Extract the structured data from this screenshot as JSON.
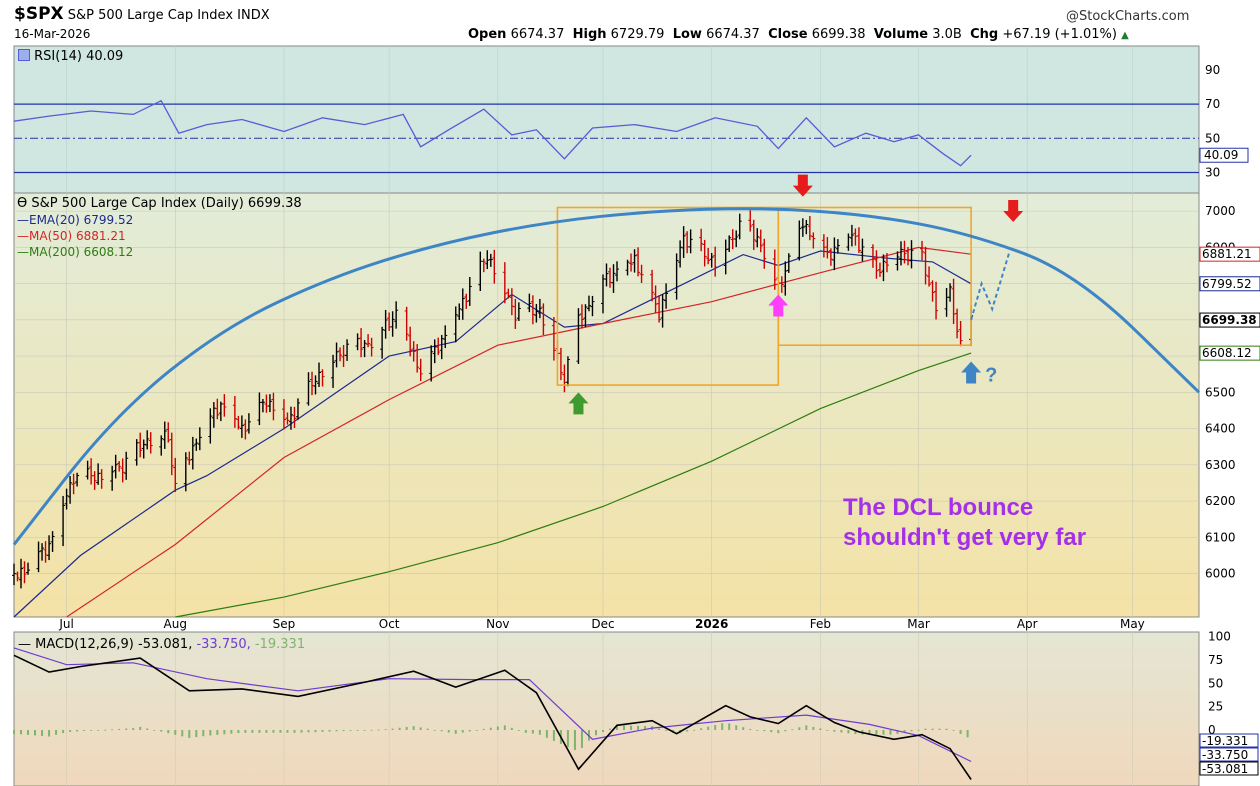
{
  "header": {
    "symbol": "$SPX",
    "name": "S&P 500 Large Cap Index",
    "exchange": "INDX",
    "date": "16-Mar-2026",
    "watermark": "@StockCharts.com",
    "ohlc": {
      "open_label": "Open",
      "open": "6674.37",
      "high_label": "High",
      "high": "6729.79",
      "low_label": "Low",
      "low": "6674.37",
      "close_label": "Close",
      "close": "6699.38",
      "volume_label": "Volume",
      "volume": "3.0B",
      "chg_label": "Chg",
      "chg": "+67.19 (+1.01%)",
      "chg_icon": "up-triangle-icon"
    }
  },
  "rsi_panel": {
    "legend": "RSI(14) 40.09",
    "value": 40.09,
    "value_label": "40.09",
    "ticks": [
      "90",
      "70",
      "50",
      "30"
    ],
    "tick_values": [
      90,
      70,
      50,
      30
    ],
    "levels": [
      70,
      50,
      30
    ],
    "ylim": [
      18,
      104
    ],
    "series": [
      {
        "d": "2025-06-16",
        "v": 60
      },
      {
        "d": "2025-06-26",
        "v": 63
      },
      {
        "d": "2025-07-08",
        "v": 66
      },
      {
        "d": "2025-07-20",
        "v": 64
      },
      {
        "d": "2025-07-28",
        "v": 72
      },
      {
        "d": "2025-08-02",
        "v": 53
      },
      {
        "d": "2025-08-10",
        "v": 58
      },
      {
        "d": "2025-08-20",
        "v": 61
      },
      {
        "d": "2025-09-01",
        "v": 54
      },
      {
        "d": "2025-09-12",
        "v": 62
      },
      {
        "d": "2025-09-24",
        "v": 58
      },
      {
        "d": "2025-10-05",
        "v": 64
      },
      {
        "d": "2025-10-10",
        "v": 45
      },
      {
        "d": "2025-10-18",
        "v": 55
      },
      {
        "d": "2025-10-28",
        "v": 67
      },
      {
        "d": "2025-11-05",
        "v": 52
      },
      {
        "d": "2025-11-12",
        "v": 55
      },
      {
        "d": "2025-11-20",
        "v": 38
      },
      {
        "d": "2025-11-28",
        "v": 56
      },
      {
        "d": "2025-12-10",
        "v": 58
      },
      {
        "d": "2025-12-22",
        "v": 54
      },
      {
        "d": "2026-01-02",
        "v": 62
      },
      {
        "d": "2026-01-14",
        "v": 57
      },
      {
        "d": "2026-01-20",
        "v": 44
      },
      {
        "d": "2026-01-28",
        "v": 62
      },
      {
        "d": "2026-02-05",
        "v": 45
      },
      {
        "d": "2026-02-14",
        "v": 53
      },
      {
        "d": "2026-02-22",
        "v": 48
      },
      {
        "d": "2026-03-01",
        "v": 52
      },
      {
        "d": "2026-03-08",
        "v": 41
      },
      {
        "d": "2026-03-13",
        "v": 34
      },
      {
        "d": "2026-03-16",
        "v": 40.09
      }
    ]
  },
  "chart_data": {
    "type": "line",
    "title": "S&P 500 Large Cap Index (Daily) 6699.38",
    "xlabel": "",
    "ylabel": "",
    "x_range": [
      "2025-06-16",
      "2026-05-20"
    ],
    "ylim": [
      5880,
      7050
    ],
    "x_ticks": [
      {
        "label": "Jul",
        "d": "2025-07-01"
      },
      {
        "label": "Aug",
        "d": "2025-08-01"
      },
      {
        "label": "Sep",
        "d": "2025-09-01"
      },
      {
        "label": "Oct",
        "d": "2025-10-01"
      },
      {
        "label": "Nov",
        "d": "2025-11-01"
      },
      {
        "label": "Dec",
        "d": "2025-12-01"
      },
      {
        "label": "2026",
        "d": "2026-01-01",
        "bold": true
      },
      {
        "label": "Feb",
        "d": "2026-02-01"
      },
      {
        "label": "Mar",
        "d": "2026-03-01"
      },
      {
        "label": "Apr",
        "d": "2026-04-01"
      },
      {
        "label": "May",
        "d": "2026-05-01"
      }
    ],
    "y_ticks": [
      6000,
      6100,
      6200,
      6300,
      6400,
      6500,
      6600,
      6700,
      6800,
      6900,
      7000
    ],
    "grid": true,
    "legend": "top-left",
    "series": [
      {
        "name": "S&P 500 Large Cap Index (Daily) 6699.38",
        "kind": "ohlc",
        "up_color": "#000000",
        "down_color": "#cc0000",
        "points": [
          {
            "d": "2025-06-16",
            "c": 5990
          },
          {
            "d": "2025-06-20",
            "c": 6020
          },
          {
            "d": "2025-06-26",
            "c": 6080
          },
          {
            "d": "2025-07-03",
            "c": 6270
          },
          {
            "d": "2025-07-10",
            "c": 6270
          },
          {
            "d": "2025-07-17",
            "c": 6300
          },
          {
            "d": "2025-07-24",
            "c": 6370
          },
          {
            "d": "2025-07-30",
            "c": 6380
          },
          {
            "d": "2025-08-01",
            "c": 6240
          },
          {
            "d": "2025-08-08",
            "c": 6390
          },
          {
            "d": "2025-08-14",
            "c": 6470
          },
          {
            "d": "2025-08-20",
            "c": 6400
          },
          {
            "d": "2025-08-27",
            "c": 6480
          },
          {
            "d": "2025-09-02",
            "c": 6420
          },
          {
            "d": "2025-09-10",
            "c": 6540
          },
          {
            "d": "2025-09-18",
            "c": 6620
          },
          {
            "d": "2025-09-26",
            "c": 6640
          },
          {
            "d": "2025-10-03",
            "c": 6720
          },
          {
            "d": "2025-10-10",
            "c": 6560
          },
          {
            "d": "2025-10-17",
            "c": 6660
          },
          {
            "d": "2025-10-24",
            "c": 6790
          },
          {
            "d": "2025-10-29",
            "c": 6880
          },
          {
            "d": "2025-11-06",
            "c": 6720
          },
          {
            "d": "2025-11-13",
            "c": 6730
          },
          {
            "d": "2025-11-20",
            "c": 6540
          },
          {
            "d": "2025-11-24",
            "c": 6700
          },
          {
            "d": "2025-12-01",
            "c": 6810
          },
          {
            "d": "2025-12-10",
            "c": 6870
          },
          {
            "d": "2025-12-17",
            "c": 6720
          },
          {
            "d": "2025-12-24",
            "c": 6930
          },
          {
            "d": "2026-01-02",
            "c": 6860
          },
          {
            "d": "2026-01-09",
            "c": 6960
          },
          {
            "d": "2026-01-14",
            "c": 6930
          },
          {
            "d": "2026-01-20",
            "c": 6790
          },
          {
            "d": "2026-01-27",
            "c": 6970
          },
          {
            "d": "2026-02-03",
            "c": 6880
          },
          {
            "d": "2026-02-10",
            "c": 6940
          },
          {
            "d": "2026-02-17",
            "c": 6840
          },
          {
            "d": "2026-02-24",
            "c": 6890
          },
          {
            "d": "2026-03-02",
            "c": 6870
          },
          {
            "d": "2026-03-06",
            "c": 6740
          },
          {
            "d": "2026-03-10",
            "c": 6780
          },
          {
            "d": "2026-03-13",
            "c": 6630
          },
          {
            "d": "2026-03-16",
            "c": 6699.38
          }
        ]
      },
      {
        "name": "EMA(20) 6799.52",
        "value": 6799.52,
        "value_label": "6799.52",
        "color": "#1c2a8e",
        "points": [
          {
            "d": "2025-06-16",
            "c": 5880
          },
          {
            "d": "2025-07-05",
            "c": 6050
          },
          {
            "d": "2025-08-01",
            "c": 6230
          },
          {
            "d": "2025-08-10",
            "c": 6270
          },
          {
            "d": "2025-09-01",
            "c": 6400
          },
          {
            "d": "2025-10-01",
            "c": 6600
          },
          {
            "d": "2025-10-20",
            "c": 6640
          },
          {
            "d": "2025-11-05",
            "c": 6770
          },
          {
            "d": "2025-11-20",
            "c": 6680
          },
          {
            "d": "2025-12-01",
            "c": 6690
          },
          {
            "d": "2025-12-20",
            "c": 6780
          },
          {
            "d": "2026-01-10",
            "c": 6880
          },
          {
            "d": "2026-01-20",
            "c": 6850
          },
          {
            "d": "2026-02-01",
            "c": 6890
          },
          {
            "d": "2026-02-20",
            "c": 6870
          },
          {
            "d": "2026-03-05",
            "c": 6860
          },
          {
            "d": "2026-03-16",
            "c": 6799.52
          }
        ]
      },
      {
        "name": "MA(50) 6881.21",
        "value": 6881.21,
        "value_label": "6881.21",
        "color": "#d42525",
        "points": [
          {
            "d": "2025-07-01",
            "c": 5880
          },
          {
            "d": "2025-08-01",
            "c": 6080
          },
          {
            "d": "2025-09-01",
            "c": 6320
          },
          {
            "d": "2025-10-01",
            "c": 6480
          },
          {
            "d": "2025-11-01",
            "c": 6630
          },
          {
            "d": "2025-12-01",
            "c": 6690
          },
          {
            "d": "2026-01-01",
            "c": 6750
          },
          {
            "d": "2026-02-01",
            "c": 6830
          },
          {
            "d": "2026-03-01",
            "c": 6900
          },
          {
            "d": "2026-03-16",
            "c": 6881.21
          }
        ]
      },
      {
        "name": "MA(200) 6608.12",
        "value": 6608.12,
        "value_label": "6608.12",
        "color": "#2e7d12",
        "points": [
          {
            "d": "2025-08-01",
            "c": 5880
          },
          {
            "d": "2025-09-01",
            "c": 5935
          },
          {
            "d": "2025-10-01",
            "c": 6005
          },
          {
            "d": "2025-11-01",
            "c": 6085
          },
          {
            "d": "2025-12-01",
            "c": 6185
          },
          {
            "d": "2026-01-01",
            "c": 6310
          },
          {
            "d": "2026-02-01",
            "c": 6455
          },
          {
            "d": "2026-03-01",
            "c": 6560
          },
          {
            "d": "2026-03-16",
            "c": 6608.12
          }
        ]
      }
    ],
    "last_close": {
      "value": 6699.38,
      "label": "6699.38"
    },
    "annotations": {
      "text": [
        "The DCL bounce",
        "shouldn't get very far"
      ],
      "text_color": "#a431e9",
      "arc_color": "#3e85c6",
      "arc_points": [
        {
          "d": "2025-06-16",
          "c": 6080
        },
        {
          "d": "2025-07-15",
          "c": 6440
        },
        {
          "d": "2025-08-15",
          "c": 6680
        },
        {
          "d": "2025-09-15",
          "c": 6820
        },
        {
          "d": "2025-10-15",
          "c": 6910
        },
        {
          "d": "2025-11-15",
          "c": 6970
        },
        {
          "d": "2025-12-15",
          "c": 7000
        },
        {
          "d": "2026-01-15",
          "c": 7010
        },
        {
          "d": "2026-02-15",
          "c": 6990
        },
        {
          "d": "2026-03-15",
          "c": 6940
        },
        {
          "d": "2026-04-15",
          "c": 6830
        },
        {
          "d": "2026-05-20",
          "c": 6500
        }
      ],
      "boxes": [
        {
          "start": "2025-11-18",
          "end": "2026-01-20",
          "low": 6520,
          "high": 7010
        },
        {
          "start": "2026-01-20",
          "end": "2026-03-16",
          "low": 6630,
          "high": 7010
        }
      ],
      "box_color": "#f1a62b",
      "projection": [
        {
          "d": "2026-03-16",
          "c": 6700
        },
        {
          "d": "2026-03-19",
          "c": 6800
        },
        {
          "d": "2026-03-22",
          "c": 6730
        },
        {
          "d": "2026-03-27",
          "c": 6890
        }
      ],
      "arrows": [
        {
          "d": "2025-11-24",
          "c": 6500,
          "dir": "up",
          "color": "#3e9b2f",
          "icon": "up-arrow-icon"
        },
        {
          "d": "2026-01-20",
          "c": 6770,
          "dir": "up",
          "color": "#ff3dff",
          "icon": "up-arrow-icon"
        },
        {
          "d": "2026-01-27",
          "c": 7040,
          "dir": "down",
          "color": "#e61b1b",
          "icon": "down-arrow-icon"
        },
        {
          "d": "2026-03-28",
          "c": 6970,
          "dir": "down",
          "color": "#e61b1b",
          "icon": "down-arrow-icon"
        },
        {
          "d": "2026-03-16",
          "c": 6585,
          "dir": "up",
          "color": "#3e85c6",
          "icon": "up-arrow-icon",
          "suffix": "?"
        }
      ]
    }
  },
  "macd_panel": {
    "legend": "MACD(12,26,9)",
    "macd_value": -53.081,
    "macd_label": "-53.081,",
    "signal_value": -33.75,
    "signal_label": "-33.750,",
    "hist_value": -19.331,
    "hist_label": "-19.331",
    "ticks": [
      "100",
      "75",
      "50",
      "25",
      "0"
    ],
    "tick_values": [
      100,
      75,
      50,
      25,
      0
    ],
    "ylim": [
      -60,
      105
    ],
    "macd_series": [
      {
        "d": "2025-06-16",
        "v": 80
      },
      {
        "d": "2025-06-26",
        "v": 62
      },
      {
        "d": "2025-07-05",
        "v": 68
      },
      {
        "d": "2025-07-22",
        "v": 77
      },
      {
        "d": "2025-08-05",
        "v": 42
      },
      {
        "d": "2025-08-20",
        "v": 44
      },
      {
        "d": "2025-09-05",
        "v": 36
      },
      {
        "d": "2025-09-25",
        "v": 52
      },
      {
        "d": "2025-10-08",
        "v": 63
      },
      {
        "d": "2025-10-20",
        "v": 46
      },
      {
        "d": "2025-11-03",
        "v": 64
      },
      {
        "d": "2025-11-12",
        "v": 40
      },
      {
        "d": "2025-11-24",
        "v": -42
      },
      {
        "d": "2025-12-05",
        "v": 5
      },
      {
        "d": "2025-12-15",
        "v": 10
      },
      {
        "d": "2025-12-22",
        "v": -4
      },
      {
        "d": "2026-01-05",
        "v": 26
      },
      {
        "d": "2026-01-12",
        "v": 14
      },
      {
        "d": "2026-01-20",
        "v": 7
      },
      {
        "d": "2026-01-28",
        "v": 26
      },
      {
        "d": "2026-02-05",
        "v": 8
      },
      {
        "d": "2026-02-12",
        "v": -2
      },
      {
        "d": "2026-02-22",
        "v": -10
      },
      {
        "d": "2026-03-02",
        "v": -5
      },
      {
        "d": "2026-03-10",
        "v": -20
      },
      {
        "d": "2026-03-16",
        "v": -53.081
      }
    ],
    "signal_series": [
      {
        "d": "2025-06-16",
        "v": 88
      },
      {
        "d": "2025-07-01",
        "v": 70
      },
      {
        "d": "2025-07-20",
        "v": 72
      },
      {
        "d": "2025-08-10",
        "v": 55
      },
      {
        "d": "2025-09-05",
        "v": 42
      },
      {
        "d": "2025-10-01",
        "v": 55
      },
      {
        "d": "2025-10-25",
        "v": 54
      },
      {
        "d": "2025-11-10",
        "v": 54
      },
      {
        "d": "2025-11-28",
        "v": -10
      },
      {
        "d": "2025-12-15",
        "v": 2
      },
      {
        "d": "2026-01-05",
        "v": 10
      },
      {
        "d": "2026-01-28",
        "v": 16
      },
      {
        "d": "2026-02-15",
        "v": 6
      },
      {
        "d": "2026-03-01",
        "v": -6
      },
      {
        "d": "2026-03-16",
        "v": -33.75
      }
    ]
  },
  "colors": {
    "rsi_bg": "#cfe6e1",
    "price_bg_top": "#e2ecd9",
    "price_bg_bottom": "#f4e2a6",
    "macd_bg_top": "#e4e6d4",
    "macd_bg_bottom": "#f0d8bc",
    "hist_color": "#7fb56a",
    "rsi_line": "#5a5ad6",
    "macd_line": "#000000",
    "signal_line": "#6f3bd1"
  }
}
